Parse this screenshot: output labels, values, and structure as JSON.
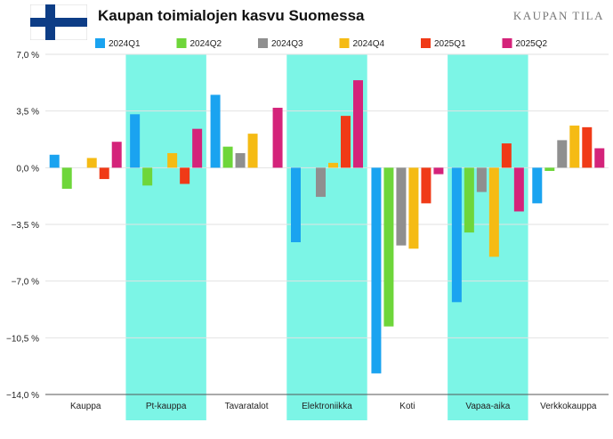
{
  "header": {
    "title": "Kaupan toimialojen kasvu Suomessa",
    "brand": "KAUPAN TILA",
    "flag_icon": "finland-flag-icon"
  },
  "chart_data": {
    "type": "bar",
    "categories": [
      "Kauppa",
      "Pt-kauppa",
      "Tavaratalot",
      "Elektroniikka",
      "Koti",
      "Vapaa-aika",
      "Verkkokauppa"
    ],
    "highlighted_categories": [
      "Pt-kauppa",
      "Elektroniikka",
      "Vapaa-aika"
    ],
    "highlight_color": "#7cf5e6",
    "series": [
      {
        "name": "2024Q1",
        "color": "#1aa3f0",
        "values": [
          0.8,
          3.3,
          4.5,
          -4.6,
          -12.7,
          -8.3,
          -2.2
        ]
      },
      {
        "name": "2024Q2",
        "color": "#6ed63a",
        "values": [
          -1.3,
          -1.1,
          1.3,
          0.0,
          -9.8,
          -4.0,
          -0.2
        ]
      },
      {
        "name": "2024Q3",
        "color": "#8f8f8f",
        "values": [
          0.0,
          0.0,
          0.9,
          -1.8,
          -4.8,
          -1.5,
          1.7
        ]
      },
      {
        "name": "2024Q4",
        "color": "#f5bb14",
        "values": [
          0.6,
          0.9,
          2.1,
          0.3,
          -5.0,
          -5.5,
          2.6
        ]
      },
      {
        "name": "2025Q1",
        "color": "#f03a17",
        "values": [
          -0.7,
          -1.0,
          0.0,
          3.2,
          -2.2,
          1.5,
          2.5
        ]
      },
      {
        "name": "2025Q2",
        "color": "#d4237a",
        "values": [
          1.6,
          2.4,
          3.7,
          5.4,
          -0.4,
          -2.7,
          1.2
        ]
      }
    ],
    "y_tick_labels": [
      "7,0 %",
      "3,5 %",
      "0,0 %",
      "−3,5 %",
      "−7,0 %",
      "−10,5 %",
      "−14,0 %"
    ],
    "ylim": [
      -14.0,
      7.0
    ],
    "grid": true,
    "legend_position": "top"
  }
}
